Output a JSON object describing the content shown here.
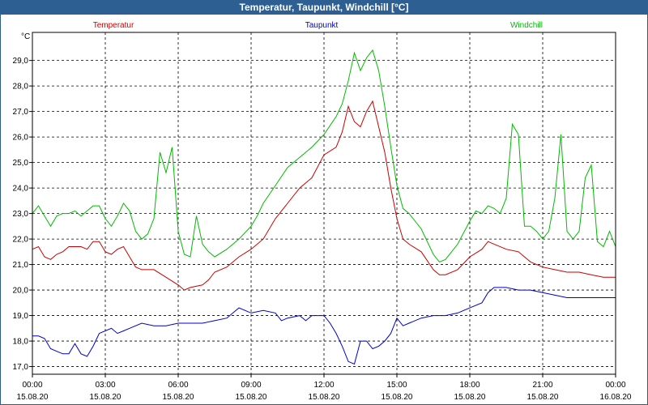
{
  "window": {
    "title": "Temperatur, Taupunkt, Windchill [°C]"
  },
  "chart_data": {
    "type": "line",
    "title": "Temperatur, Taupunkt, Windchill [°C]",
    "ylabel": "°C",
    "xlabel": "",
    "ylim": [
      16.7,
      30.1
    ],
    "xlim_hours": [
      0,
      24
    ],
    "yticks": [
      17.0,
      18.0,
      19.0,
      20.0,
      21.0,
      22.0,
      23.0,
      24.0,
      25.0,
      26.0,
      27.0,
      28.0,
      29.0
    ],
    "ytick_labels": [
      "17,0",
      "18,0",
      "19,0",
      "20,0",
      "21,0",
      "22,0",
      "23,0",
      "24,0",
      "25,0",
      "26,0",
      "27,0",
      "28,0",
      "29,0"
    ],
    "xticks": [
      {
        "hour": 0,
        "time": "00:00",
        "date": "15.08.20"
      },
      {
        "hour": 3,
        "time": "03:00",
        "date": "15.08.20"
      },
      {
        "hour": 6,
        "time": "06:00",
        "date": "15.08.20"
      },
      {
        "hour": 9,
        "time": "09:00",
        "date": "15.08.20"
      },
      {
        "hour": 12,
        "time": "12:00",
        "date": "15.08.20"
      },
      {
        "hour": 15,
        "time": "15:00",
        "date": "15.08.20"
      },
      {
        "hour": 18,
        "time": "18:00",
        "date": "15.08.20"
      },
      {
        "hour": 21,
        "time": "21:00",
        "date": "15.08.20"
      },
      {
        "hour": 24,
        "time": "00:00",
        "date": "16.08.20"
      }
    ],
    "grid": true,
    "legend_position": "top",
    "series": [
      {
        "name": "Temperatur",
        "color": "#cc0000",
        "points": [
          [
            0,
            21.6
          ],
          [
            0.25,
            21.7
          ],
          [
            0.5,
            21.3
          ],
          [
            0.75,
            21.2
          ],
          [
            1,
            21.4
          ],
          [
            1.25,
            21.5
          ],
          [
            1.5,
            21.7
          ],
          [
            1.75,
            21.7
          ],
          [
            2,
            21.7
          ],
          [
            2.25,
            21.6
          ],
          [
            2.5,
            21.9
          ],
          [
            2.75,
            21.9
          ],
          [
            3,
            21.5
          ],
          [
            3.25,
            21.4
          ],
          [
            3.5,
            21.6
          ],
          [
            3.75,
            21.7
          ],
          [
            4,
            21.3
          ],
          [
            4.25,
            20.9
          ],
          [
            4.5,
            20.8
          ],
          [
            5,
            20.8
          ],
          [
            5.5,
            20.5
          ],
          [
            6,
            20.2
          ],
          [
            6.25,
            20.0
          ],
          [
            6.5,
            20.1
          ],
          [
            7,
            20.2
          ],
          [
            7.25,
            20.4
          ],
          [
            7.5,
            20.7
          ],
          [
            8,
            20.9
          ],
          [
            8.5,
            21.3
          ],
          [
            9,
            21.6
          ],
          [
            9.5,
            22.0
          ],
          [
            10,
            22.8
          ],
          [
            10.5,
            23.4
          ],
          [
            11,
            24.0
          ],
          [
            11.5,
            24.4
          ],
          [
            12,
            25.3
          ],
          [
            12.5,
            25.6
          ],
          [
            12.75,
            26.2
          ],
          [
            13,
            27.2
          ],
          [
            13.25,
            26.6
          ],
          [
            13.5,
            26.4
          ],
          [
            13.75,
            27.0
          ],
          [
            14,
            27.4
          ],
          [
            14.25,
            26.4
          ],
          [
            14.5,
            25.4
          ],
          [
            14.75,
            24.0
          ],
          [
            15,
            22.8
          ],
          [
            15.25,
            22.0
          ],
          [
            15.5,
            21.8
          ],
          [
            16,
            21.5
          ],
          [
            16.5,
            20.8
          ],
          [
            16.75,
            20.6
          ],
          [
            17,
            20.6
          ],
          [
            17.5,
            20.8
          ],
          [
            18,
            21.3
          ],
          [
            18.5,
            21.6
          ],
          [
            18.75,
            21.9
          ],
          [
            19,
            21.8
          ],
          [
            19.5,
            21.6
          ],
          [
            20,
            21.5
          ],
          [
            20.5,
            21.1
          ],
          [
            21,
            20.9
          ],
          [
            21.5,
            20.8
          ],
          [
            22,
            20.7
          ],
          [
            22.5,
            20.7
          ],
          [
            23,
            20.6
          ],
          [
            23.5,
            20.5
          ],
          [
            24,
            20.5
          ]
        ]
      },
      {
        "name": "Taupunkt",
        "color": "#0000cc",
        "points": [
          [
            0,
            18.2
          ],
          [
            0.25,
            18.2
          ],
          [
            0.5,
            18.1
          ],
          [
            0.75,
            17.7
          ],
          [
            1,
            17.6
          ],
          [
            1.25,
            17.5
          ],
          [
            1.5,
            17.5
          ],
          [
            1.75,
            17.9
          ],
          [
            2,
            17.5
          ],
          [
            2.25,
            17.4
          ],
          [
            2.5,
            17.8
          ],
          [
            2.75,
            18.3
          ],
          [
            3,
            18.4
          ],
          [
            3.25,
            18.5
          ],
          [
            3.5,
            18.3
          ],
          [
            3.75,
            18.4
          ],
          [
            4,
            18.5
          ],
          [
            4.5,
            18.7
          ],
          [
            5,
            18.6
          ],
          [
            5.5,
            18.6
          ],
          [
            6,
            18.7
          ],
          [
            6.5,
            18.7
          ],
          [
            7,
            18.7
          ],
          [
            7.5,
            18.8
          ],
          [
            8,
            18.9
          ],
          [
            8.25,
            19.1
          ],
          [
            8.5,
            19.3
          ],
          [
            9,
            19.1
          ],
          [
            9.5,
            19.2
          ],
          [
            10,
            19.1
          ],
          [
            10.25,
            18.8
          ],
          [
            10.5,
            18.9
          ],
          [
            11,
            19.0
          ],
          [
            11.25,
            18.8
          ],
          [
            11.5,
            19.0
          ],
          [
            12,
            19.0
          ],
          [
            12.25,
            18.7
          ],
          [
            12.5,
            18.3
          ],
          [
            12.75,
            17.8
          ],
          [
            13,
            17.2
          ],
          [
            13.25,
            17.1
          ],
          [
            13.5,
            18.0
          ],
          [
            13.75,
            18.0
          ],
          [
            14,
            17.7
          ],
          [
            14.25,
            17.8
          ],
          [
            14.5,
            18.0
          ],
          [
            14.75,
            18.3
          ],
          [
            15,
            18.9
          ],
          [
            15.25,
            18.6
          ],
          [
            15.5,
            18.7
          ],
          [
            16,
            18.9
          ],
          [
            16.5,
            19.0
          ],
          [
            17,
            19.0
          ],
          [
            17.5,
            19.1
          ],
          [
            18,
            19.3
          ],
          [
            18.5,
            19.5
          ],
          [
            18.75,
            19.9
          ],
          [
            19,
            20.1
          ],
          [
            19.5,
            20.1
          ],
          [
            20,
            20.0
          ],
          [
            20.5,
            20.0
          ],
          [
            21,
            19.9
          ],
          [
            21.5,
            19.8
          ],
          [
            22,
            19.7
          ],
          [
            22.5,
            19.7
          ],
          [
            23,
            19.7
          ],
          [
            23.5,
            19.7
          ],
          [
            24,
            19.7
          ]
        ]
      },
      {
        "name": "Windchill",
        "color": "#00bb00",
        "points": [
          [
            0,
            23.0
          ],
          [
            0.25,
            23.3
          ],
          [
            0.5,
            22.9
          ],
          [
            0.75,
            22.5
          ],
          [
            1,
            22.9
          ],
          [
            1.25,
            23.0
          ],
          [
            1.5,
            23.0
          ],
          [
            1.75,
            23.1
          ],
          [
            2,
            22.9
          ],
          [
            2.25,
            23.1
          ],
          [
            2.5,
            23.3
          ],
          [
            2.75,
            23.3
          ],
          [
            3,
            22.8
          ],
          [
            3.25,
            22.5
          ],
          [
            3.5,
            22.9
          ],
          [
            3.75,
            23.4
          ],
          [
            4,
            23.1
          ],
          [
            4.25,
            22.3
          ],
          [
            4.5,
            22.0
          ],
          [
            4.75,
            22.2
          ],
          [
            5,
            22.8
          ],
          [
            5.25,
            25.4
          ],
          [
            5.5,
            24.6
          ],
          [
            5.75,
            25.6
          ],
          [
            6,
            22.3
          ],
          [
            6.25,
            21.4
          ],
          [
            6.5,
            21.3
          ],
          [
            6.75,
            22.9
          ],
          [
            7,
            21.8
          ],
          [
            7.25,
            21.5
          ],
          [
            7.5,
            21.3
          ],
          [
            8,
            21.6
          ],
          [
            8.5,
            22.0
          ],
          [
            9,
            22.5
          ],
          [
            9.25,
            22.9
          ],
          [
            9.5,
            23.4
          ],
          [
            10,
            24.1
          ],
          [
            10.5,
            24.8
          ],
          [
            11,
            25.2
          ],
          [
            11.5,
            25.6
          ],
          [
            12,
            26.1
          ],
          [
            12.5,
            26.8
          ],
          [
            12.75,
            27.3
          ],
          [
            13,
            28.2
          ],
          [
            13.25,
            29.3
          ],
          [
            13.5,
            28.6
          ],
          [
            13.75,
            29.1
          ],
          [
            14,
            29.4
          ],
          [
            14.25,
            28.6
          ],
          [
            14.5,
            27.2
          ],
          [
            14.75,
            25.6
          ],
          [
            15,
            24.1
          ],
          [
            15.25,
            23.2
          ],
          [
            15.5,
            23.0
          ],
          [
            16,
            22.4
          ],
          [
            16.5,
            21.4
          ],
          [
            16.75,
            21.1
          ],
          [
            17,
            21.2
          ],
          [
            17.5,
            21.8
          ],
          [
            18,
            22.7
          ],
          [
            18.25,
            23.1
          ],
          [
            18.5,
            23.0
          ],
          [
            18.75,
            23.3
          ],
          [
            19,
            23.2
          ],
          [
            19.25,
            23.0
          ],
          [
            19.5,
            23.6
          ],
          [
            19.75,
            26.5
          ],
          [
            20,
            26.1
          ],
          [
            20.25,
            22.5
          ],
          [
            20.5,
            22.5
          ],
          [
            20.75,
            22.3
          ],
          [
            21,
            22.0
          ],
          [
            21.25,
            22.3
          ],
          [
            21.5,
            23.6
          ],
          [
            21.75,
            26.1
          ],
          [
            22,
            22.3
          ],
          [
            22.25,
            22.0
          ],
          [
            22.5,
            22.3
          ],
          [
            22.75,
            24.4
          ],
          [
            23,
            24.9
          ],
          [
            23.25,
            21.9
          ],
          [
            23.5,
            21.7
          ],
          [
            23.75,
            22.3
          ],
          [
            24,
            21.7
          ]
        ]
      }
    ]
  }
}
